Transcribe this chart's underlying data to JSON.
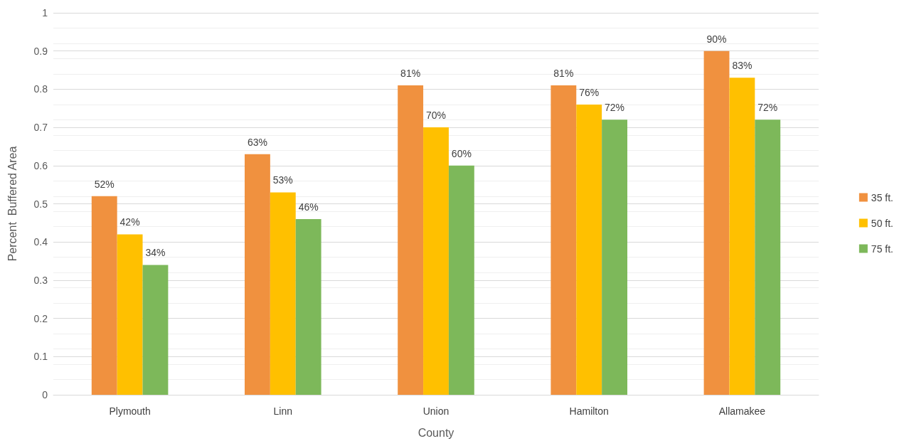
{
  "chart_data": {
    "type": "bar",
    "xlabel": "County",
    "ylabel": "Percent  Buffered Area",
    "categories": [
      "Plymouth",
      "Linn",
      "Union",
      "Hamilton",
      "Allamakee"
    ],
    "series": [
      {
        "name": "35 ft.",
        "color": "#f0913f",
        "values": [
          0.52,
          0.63,
          0.81,
          0.81,
          0.9
        ],
        "value_labels": [
          "52%",
          "63%",
          "81%",
          "81%",
          "90%"
        ]
      },
      {
        "name": "50 ft.",
        "color": "#ffc000",
        "values": [
          0.42,
          0.53,
          0.7,
          0.76,
          0.83
        ],
        "value_labels": [
          "42%",
          "53%",
          "70%",
          "76%",
          "83%"
        ]
      },
      {
        "name": "75 ft.",
        "color": "#7db85a",
        "values": [
          0.34,
          0.46,
          0.6,
          0.72,
          0.72
        ],
        "value_labels": [
          "34%",
          "46%",
          "60%",
          "72%",
          "72%"
        ]
      }
    ],
    "ylim": [
      0,
      1
    ],
    "yticks": [
      0,
      0.1,
      0.2,
      0.3,
      0.4,
      0.5,
      0.6,
      0.7,
      0.8,
      0.9,
      1
    ],
    "grid": "y",
    "legend": "right"
  }
}
